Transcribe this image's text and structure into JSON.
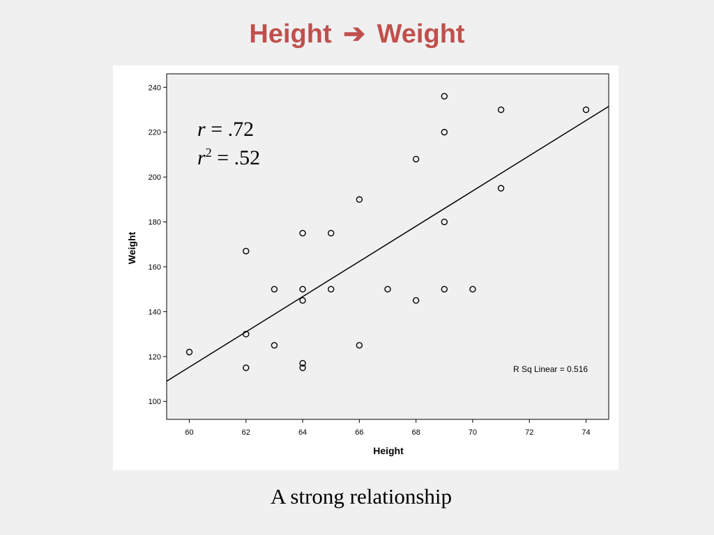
{
  "slide": {
    "title_left": "Height",
    "title_arrow": "➔",
    "title_right": "Weight",
    "caption": "A strong relationship"
  },
  "chart_data": {
    "type": "scatter",
    "xlabel": "Height",
    "ylabel": "Weight",
    "xlim": [
      59.2,
      74.8
    ],
    "ylim": [
      92,
      246
    ],
    "xticks": [
      60,
      62,
      64,
      66,
      68,
      70,
      72,
      74
    ],
    "yticks": [
      100,
      120,
      140,
      160,
      180,
      200,
      220,
      240
    ],
    "grid": false,
    "points": [
      {
        "x": 60,
        "y": 122
      },
      {
        "x": 62,
        "y": 167
      },
      {
        "x": 62,
        "y": 130
      },
      {
        "x": 62,
        "y": 115
      },
      {
        "x": 63,
        "y": 150
      },
      {
        "x": 63,
        "y": 125
      },
      {
        "x": 64,
        "y": 175
      },
      {
        "x": 64,
        "y": 150
      },
      {
        "x": 64,
        "y": 145
      },
      {
        "x": 64,
        "y": 117
      },
      {
        "x": 64,
        "y": 115
      },
      {
        "x": 65,
        "y": 175
      },
      {
        "x": 65,
        "y": 150
      },
      {
        "x": 66,
        "y": 190
      },
      {
        "x": 66,
        "y": 125
      },
      {
        "x": 67,
        "y": 150
      },
      {
        "x": 68,
        "y": 208
      },
      {
        "x": 68,
        "y": 145
      },
      {
        "x": 69,
        "y": 236
      },
      {
        "x": 69,
        "y": 220
      },
      {
        "x": 69,
        "y": 180
      },
      {
        "x": 69,
        "y": 150
      },
      {
        "x": 70,
        "y": 150
      },
      {
        "x": 71,
        "y": 230
      },
      {
        "x": 71,
        "y": 195
      },
      {
        "x": 74,
        "y": 230
      }
    ],
    "fit_line": {
      "x0": 59.2,
      "y0": 109,
      "x1": 74.8,
      "y1": 231.5
    },
    "annotations": {
      "r_label": "r",
      "r_value": " = .72",
      "r2_label": "r",
      "r2_sup": "2",
      "r2_value": " = .52",
      "rsq_linear": "R Sq Linear = 0.516"
    },
    "colors": {
      "plot_bg": "#f0f0f0",
      "marker": "#000000",
      "line": "#000000"
    }
  }
}
